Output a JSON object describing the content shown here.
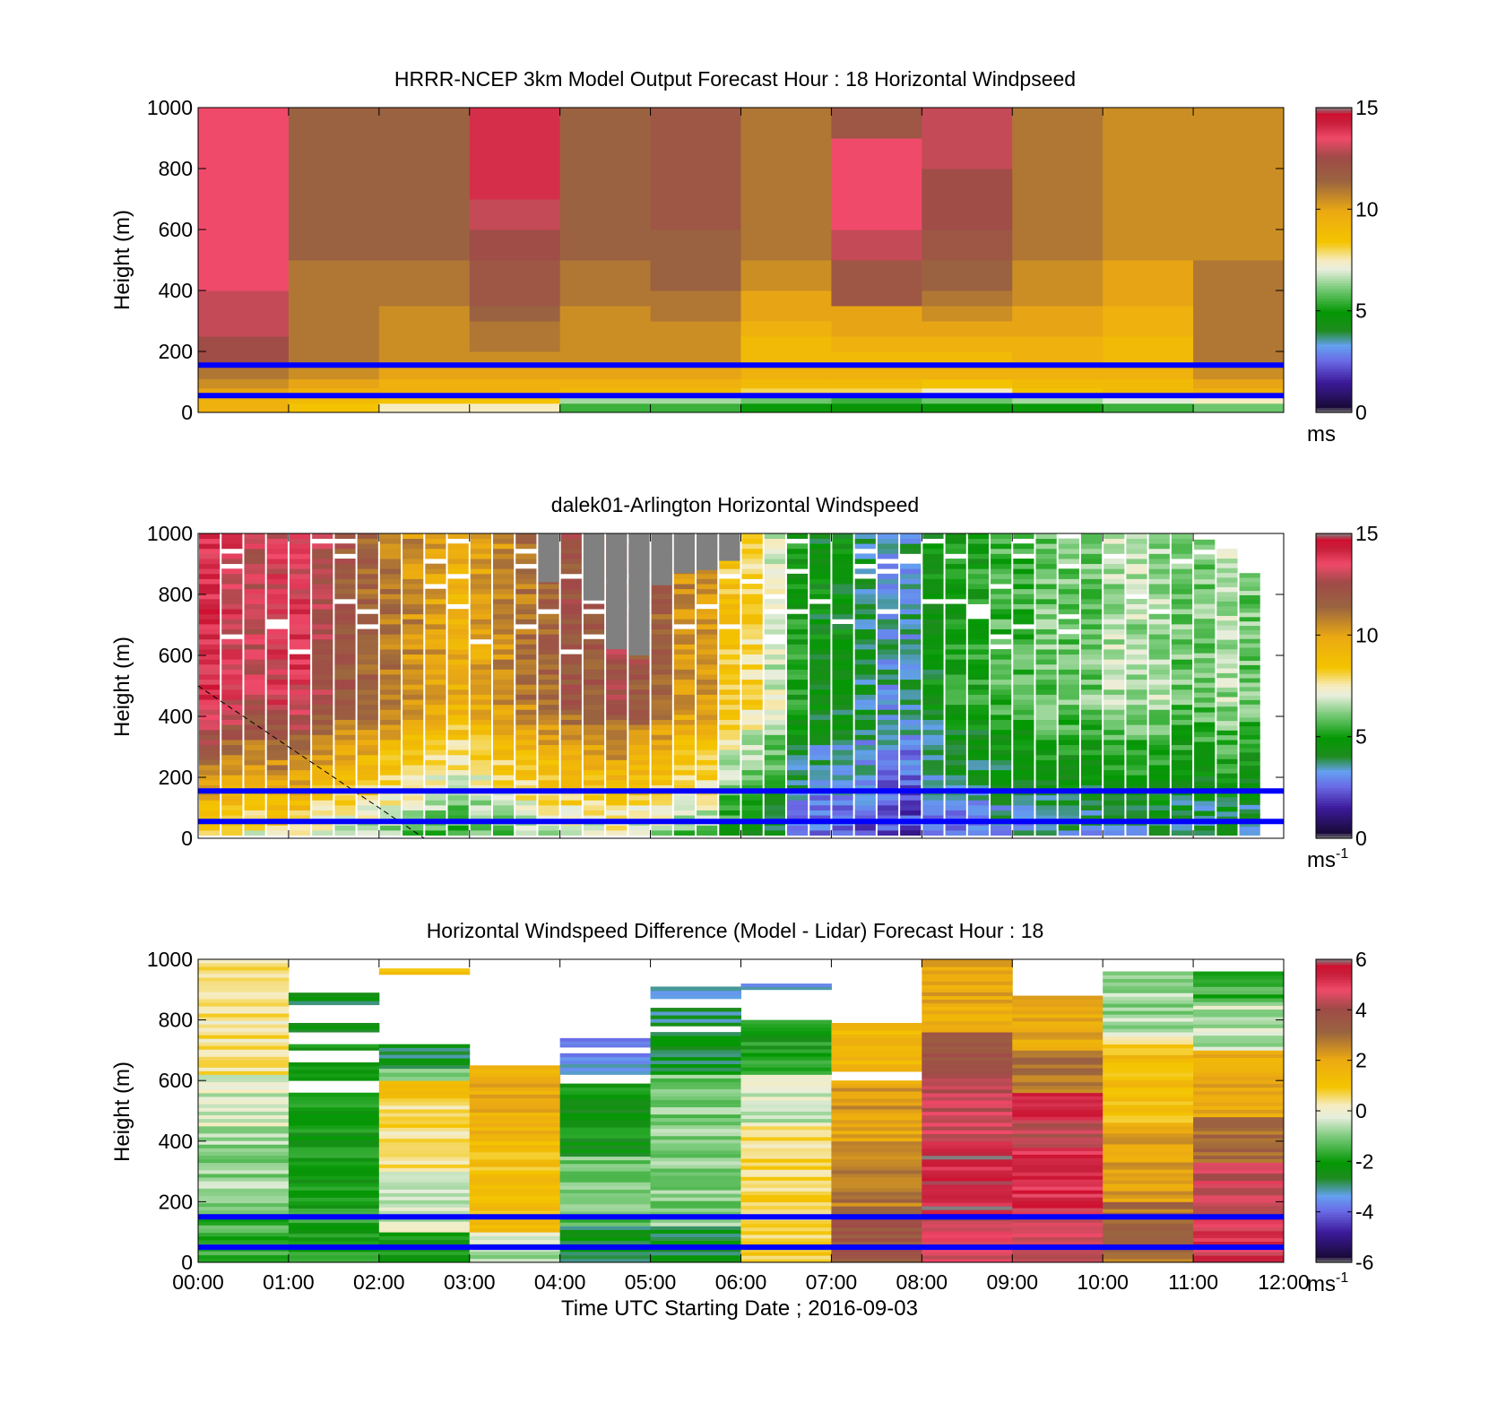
{
  "chart_data": [
    {
      "type": "heatmap",
      "title": "HRRR-NCEP 3km Model Output   Forecast Hour : 18 Horizontal Windpseed",
      "ylabel": "Height (m)",
      "xlabel": "",
      "xlim_hours": [
        0,
        12
      ],
      "ylim": [
        0,
        1000
      ],
      "yticks": [
        "0",
        "200",
        "400",
        "600",
        "800",
        "1000"
      ],
      "colorbar": {
        "ticks": [
          "0",
          "5",
          "10",
          "15"
        ],
        "range": [
          0,
          15
        ],
        "unit": "ms",
        "unit_sup": "",
        "palette": "speed"
      },
      "hlines_m": [
        55,
        155
      ],
      "x_bins_hours": [
        0,
        1,
        2,
        3,
        4,
        5,
        6,
        7,
        8,
        9,
        10,
        11,
        12
      ],
      "y_bin_edges_m": [
        0,
        30,
        55,
        80,
        110,
        150,
        200,
        250,
        300,
        350,
        400,
        500,
        600,
        700,
        800,
        900,
        1000
      ],
      "values": [
        [
          9.5,
          8.5,
          7.5,
          7.5,
          5.5,
          5.5,
          5.0,
          4.8,
          4.8,
          5.0,
          5.5,
          6.0
        ],
        [
          9.5,
          9.0,
          8.5,
          8.5,
          6.5,
          6.5,
          6.0,
          5.5,
          6.0,
          6.5,
          7.0,
          7.5
        ],
        [
          10.0,
          9.5,
          9.5,
          9.5,
          9.0,
          9.0,
          8.0,
          8.0,
          7.5,
          8.5,
          9.0,
          9.5
        ],
        [
          10.5,
          10.0,
          9.5,
          9.5,
          9.5,
          9.5,
          9.0,
          9.0,
          8.5,
          9.0,
          9.0,
          10.0
        ],
        [
          11.0,
          10.5,
          10.0,
          10.0,
          10.0,
          10.0,
          9.5,
          9.5,
          9.5,
          9.5,
          9.5,
          10.5
        ],
        [
          12.5,
          11.0,
          10.5,
          10.5,
          10.5,
          10.5,
          9.0,
          9.0,
          9.0,
          9.5,
          9.0,
          11.0
        ],
        [
          12.5,
          11.0,
          10.5,
          11.0,
          10.5,
          10.5,
          9.0,
          9.5,
          9.5,
          9.5,
          9.0,
          11.0
        ],
        [
          13.0,
          11.0,
          10.5,
          11.0,
          10.5,
          10.5,
          9.5,
          10.0,
          10.0,
          10.0,
          9.5,
          11.0
        ],
        [
          13.0,
          11.0,
          10.5,
          11.5,
          10.5,
          11.0,
          10.0,
          10.0,
          10.5,
          10.0,
          9.5,
          11.0
        ],
        [
          13.0,
          11.0,
          11.0,
          12.0,
          11.0,
          11.0,
          10.0,
          12.0,
          11.0,
          10.5,
          10.0,
          11.0
        ],
        [
          13.5,
          11.0,
          11.0,
          12.0,
          11.0,
          11.5,
          10.5,
          12.0,
          11.5,
          10.5,
          10.0,
          11.0
        ],
        [
          13.5,
          11.5,
          11.5,
          12.5,
          11.5,
          11.5,
          11.0,
          13.0,
          12.0,
          11.0,
          10.5,
          10.5
        ],
        [
          13.5,
          11.5,
          11.5,
          13.0,
          11.5,
          12.0,
          11.0,
          13.5,
          12.5,
          11.0,
          10.5,
          10.5
        ],
        [
          13.5,
          11.5,
          11.5,
          14.0,
          11.5,
          12.0,
          11.0,
          13.5,
          12.5,
          11.0,
          10.5,
          10.5
        ],
        [
          13.5,
          11.5,
          11.5,
          14.0,
          11.5,
          12.0,
          11.0,
          13.5,
          13.0,
          11.0,
          10.5,
          10.5
        ],
        [
          13.5,
          11.5,
          11.5,
          14.0,
          11.5,
          12.0,
          11.0,
          12.0,
          13.0,
          11.0,
          10.5,
          10.5
        ]
      ]
    },
    {
      "type": "heatmap",
      "title": "dalek01-Arlington  Horizontal Windspeed",
      "ylabel": "Height (m)",
      "xlabel": "",
      "xlim_hours": [
        0,
        12
      ],
      "ylim": [
        0,
        1000
      ],
      "yticks": [
        "0",
        "200",
        "400",
        "600",
        "800",
        "1000"
      ],
      "colorbar": {
        "ticks": [
          "0",
          "5",
          "10",
          "15"
        ],
        "range": [
          0,
          15
        ],
        "unit": "ms",
        "unit_sup": "-1",
        "palette": "speed"
      },
      "hlines_m": [
        55,
        155
      ],
      "profile_interval_hours": 0.25,
      "profile_speed_ms": [
        14,
        13.5,
        13,
        13.5,
        13.5,
        12.5,
        12,
        11.5,
        11,
        10.5,
        10,
        9.5,
        10,
        10.5,
        11,
        11.5,
        12,
        12,
        12.5,
        12,
        11.5,
        10.5,
        10.5,
        8.5,
        8,
        7,
        5,
        4.5,
        4.5,
        4,
        3.5,
        3.5,
        4.5,
        5,
        5,
        5.5,
        5.5,
        6,
        6,
        6,
        6.5,
        6.5,
        6.5,
        6,
        6,
        6.5,
        6
      ],
      "profile_top_m": [
        1000,
        1000,
        1000,
        1000,
        1000,
        1000,
        1000,
        1000,
        1000,
        1000,
        1000,
        1000,
        1000,
        1000,
        1000,
        1000,
        1000,
        1000,
        1000,
        1000,
        1000,
        1000,
        1000,
        1000,
        1000,
        1000,
        1000,
        1000,
        1000,
        1000,
        1000,
        1000,
        1000,
        1000,
        1000,
        1000,
        1000,
        1000,
        1000,
        1000,
        1000,
        1000,
        1000,
        1000,
        980,
        950,
        870
      ],
      "missing_gray_hours": [
        3.75,
        4.25,
        4.5,
        4.75,
        5.0,
        5.25,
        5.5,
        5.75
      ],
      "missing_gray_top_m": 1000,
      "missing_gray_bottom_m": [
        840,
        780,
        620,
        600,
        830,
        870,
        880,
        910
      ],
      "dashed_line_points": [
        [
          0,
          500
        ],
        [
          2.5,
          0
        ]
      ]
    },
    {
      "type": "heatmap",
      "title": "Horizontal Windspeed Difference (Model - Lidar) Forecast Hour : 18",
      "ylabel": "Height (m)",
      "xlabel": "Time UTC  Starting Date ; 2016-09-03",
      "xlim_hours": [
        0,
        12
      ],
      "xticks": [
        "00:00",
        "01:00",
        "02:00",
        "03:00",
        "04:00",
        "05:00",
        "06:00",
        "07:00",
        "08:00",
        "09:00",
        "10:00",
        "11:00",
        "12:00"
      ],
      "ylim": [
        0,
        1000
      ],
      "yticks": [
        "0",
        "200",
        "400",
        "600",
        "800",
        "1000"
      ],
      "colorbar": {
        "ticks": [
          "-6",
          "-4",
          "-2",
          "0",
          "2",
          "4",
          "6"
        ],
        "range": [
          -6,
          6
        ],
        "unit": "ms",
        "unit_sup": "-1",
        "palette": "diff"
      },
      "hlines_m": [
        50,
        150
      ],
      "column_segments": [
        [
          [
            0,
            160,
            -1.5
          ],
          [
            160,
            450,
            -0.8
          ],
          [
            450,
            620,
            -0.3
          ],
          [
            620,
            1000,
            0.4
          ]
        ],
        [
          [
            0,
            560,
            -2.0
          ],
          [
            600,
            660,
            -2.2
          ],
          [
            700,
            720,
            -2.0
          ],
          [
            760,
            790,
            -2.2
          ],
          [
            850,
            890,
            -2.6
          ]
        ],
        [
          [
            0,
            100,
            -2.0
          ],
          [
            100,
            300,
            -0.3
          ],
          [
            300,
            530,
            0.5
          ],
          [
            530,
            600,
            1.2
          ],
          [
            600,
            640,
            -1.0
          ],
          [
            640,
            720,
            -2.6
          ],
          [
            950,
            970,
            1.0
          ]
        ],
        [
          [
            0,
            100,
            -0.6
          ],
          [
            100,
            400,
            1.2
          ],
          [
            400,
            650,
            1.8
          ]
        ],
        [
          [
            0,
            120,
            -2.5
          ],
          [
            120,
            350,
            -1.2
          ],
          [
            350,
            590,
            -2.2
          ],
          [
            620,
            690,
            -3.5
          ],
          [
            710,
            740,
            -3.5
          ]
        ],
        [
          [
            0,
            120,
            -2.6
          ],
          [
            120,
            620,
            -1.0
          ],
          [
            620,
            760,
            -2.5
          ],
          [
            780,
            840,
            -2.8
          ],
          [
            870,
            910,
            -3.5
          ]
        ],
        [
          [
            0,
            80,
            0.8
          ],
          [
            80,
            450,
            0.6
          ],
          [
            450,
            620,
            -0.4
          ],
          [
            620,
            800,
            -2.0
          ],
          [
            900,
            920,
            -3.2
          ]
        ],
        [
          [
            0,
            150,
            3.5
          ],
          [
            150,
            400,
            2.8
          ],
          [
            400,
            600,
            2.2
          ],
          [
            630,
            790,
            1.4
          ]
        ],
        [
          [
            0,
            150,
            4.5
          ],
          [
            150,
            400,
            5.5
          ],
          [
            400,
            620,
            4.5
          ],
          [
            620,
            760,
            3.5
          ],
          [
            760,
            1000,
            2.0
          ]
        ],
        [
          [
            0,
            180,
            4.5
          ],
          [
            180,
            380,
            5.2
          ],
          [
            380,
            470,
            4.2
          ],
          [
            470,
            560,
            5.5
          ],
          [
            560,
            700,
            2.8
          ],
          [
            700,
            880,
            2.0
          ]
        ],
        [
          [
            0,
            200,
            3.0
          ],
          [
            200,
            450,
            2.2
          ],
          [
            450,
            720,
            1.2
          ],
          [
            720,
            760,
            0.0
          ],
          [
            760,
            960,
            -0.7
          ]
        ],
        [
          [
            0,
            150,
            5.0
          ],
          [
            150,
            330,
            4.5
          ],
          [
            330,
            480,
            3.0
          ],
          [
            480,
            700,
            1.8
          ],
          [
            700,
            860,
            -0.5
          ],
          [
            860,
            960,
            -1.5
          ]
        ]
      ]
    }
  ]
}
